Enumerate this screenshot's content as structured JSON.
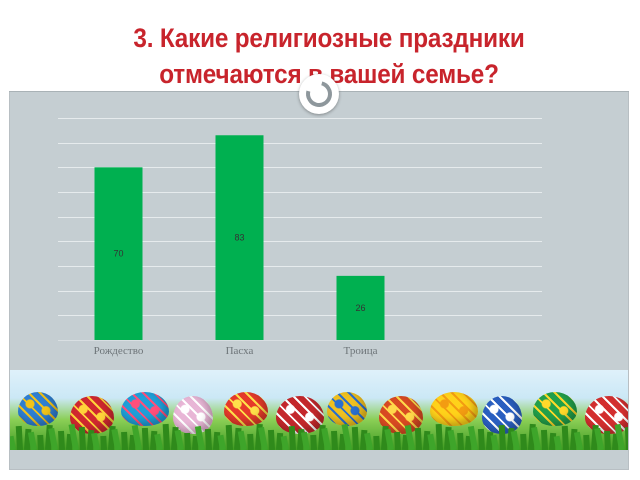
{
  "slide": {
    "title_lines": [
      "3. Какие религиозные праздники",
      "отмечаются в вашей семье?"
    ]
  },
  "colors": {
    "title": "#c8242c",
    "bar": "#00b050",
    "plot_background": "#c5ced2",
    "gridline": "#e6ebed"
  },
  "decor": {
    "banner": "easter-eggs-on-grass-image",
    "ornament": "ring-icon"
  },
  "chart_data": {
    "type": "bar",
    "categories": [
      "Рождество",
      "Пасха",
      "Троица"
    ],
    "values": [
      70,
      83,
      26
    ],
    "data_labels": [
      "70",
      "83",
      "26"
    ],
    "title": "",
    "xlabel": "",
    "ylabel": "",
    "ylim": [
      0,
      90
    ],
    "y_tick_step": 10,
    "y_tick_labels_shown": false,
    "grid": true,
    "legend": "none"
  }
}
